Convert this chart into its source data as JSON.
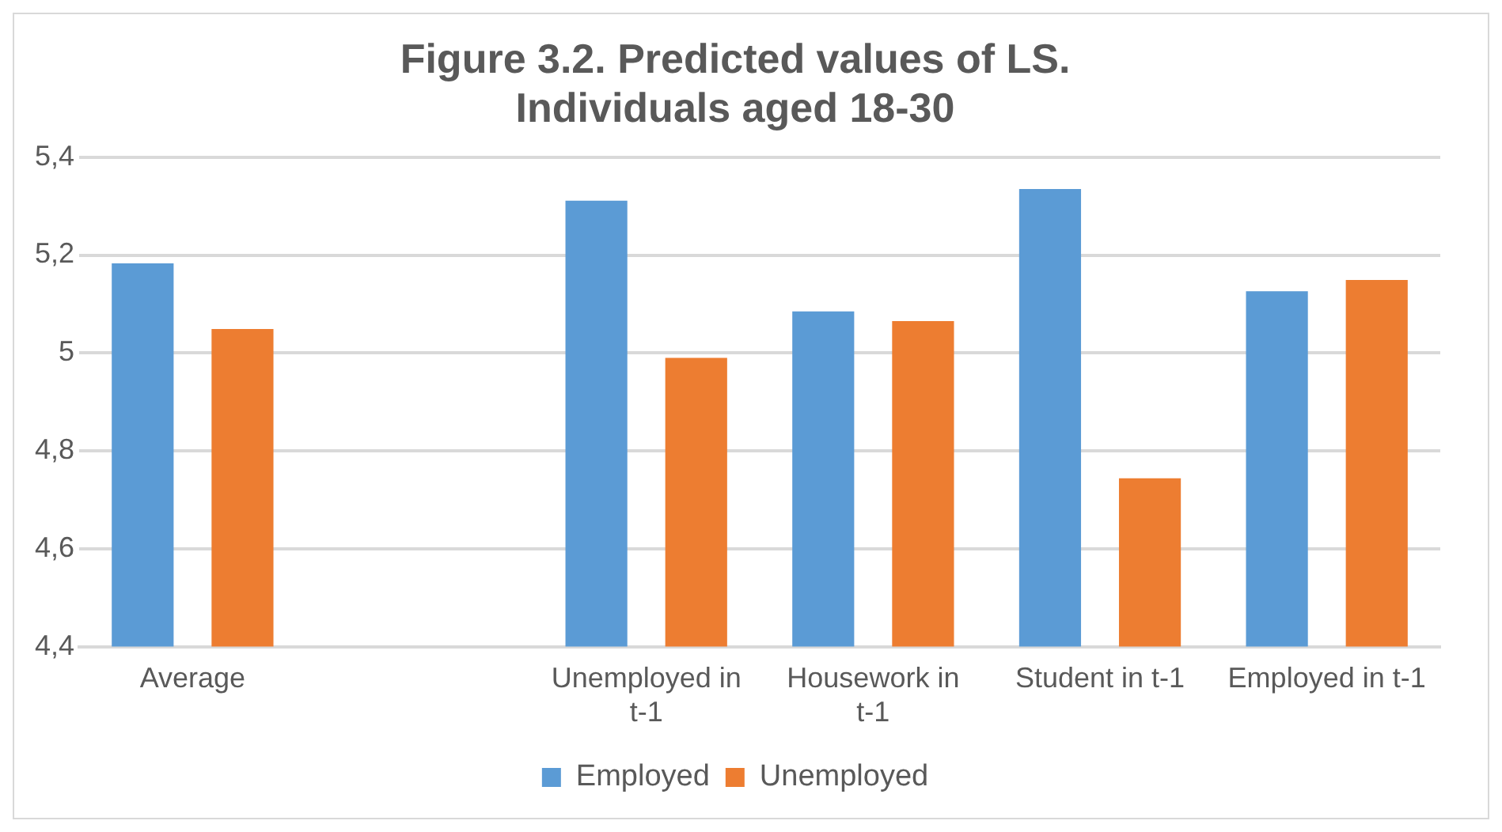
{
  "chart_data": {
    "type": "bar",
    "title": "Figure 3.2. Predicted values of LS. Individuals aged 18-30",
    "categories": [
      "Average",
      null,
      "Unemployed in t-1",
      "Housework in t-1",
      "Student in t-1",
      "Employed in t-1"
    ],
    "series": [
      {
        "name": "Employed",
        "color": "#5b9bd5",
        "values": [
          5.183,
          null,
          5.311,
          5.085,
          5.335,
          5.126
        ]
      },
      {
        "name": "Unemployed",
        "color": "#ed7d31",
        "values": [
          5.049,
          null,
          4.99,
          5.065,
          4.744,
          5.149
        ]
      }
    ],
    "ylim": [
      4.4,
      5.4
    ],
    "yticks": [
      {
        "value": 4.4,
        "label": "4,4"
      },
      {
        "value": 4.6,
        "label": "4,6"
      },
      {
        "value": 4.8,
        "label": "4,8"
      },
      5,
      {
        "value": 5.2,
        "label": "5,2"
      },
      {
        "value": 5.4,
        "label": "5,4"
      }
    ],
    "grid": "y",
    "legend": "bottom"
  }
}
